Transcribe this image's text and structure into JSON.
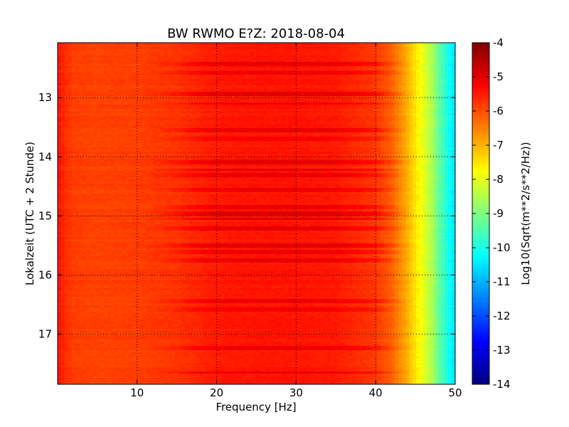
{
  "chart_data": {
    "type": "heatmap",
    "title": "BW RWMO E?Z: 2018-08-04",
    "xlabel": "Frequency [Hz]",
    "ylabel": "Lokalzeit (UTC + 2 Stunde)",
    "xlim": [
      0,
      50
    ],
    "ylim": [
      12.07,
      17.85
    ],
    "y_inverted": true,
    "x_ticks": [
      "10",
      "20",
      "30",
      "40",
      "50"
    ],
    "y_ticks": [
      "13",
      "14",
      "15",
      "16",
      "17"
    ],
    "grid": true,
    "colormap": "jet",
    "colorbar": {
      "label": "Log10(Sqrt(m**2/s**2/Hz))",
      "range": [
        -14,
        -4
      ],
      "ticks": [
        "-4",
        "-5",
        "-6",
        "-7",
        "-8",
        "-9",
        "-10",
        "-11",
        "-12",
        "-13",
        "-14"
      ]
    },
    "spectrum_profile": {
      "frequency_hz": [
        0,
        1,
        2,
        5,
        10,
        15,
        20,
        25,
        30,
        35,
        40,
        42,
        44,
        45,
        46,
        47,
        48,
        49,
        50
      ],
      "log10_amplitude": [
        -5.4,
        -5.7,
        -5.85,
        -5.9,
        -5.85,
        -5.75,
        -5.5,
        -5.45,
        -5.45,
        -5.5,
        -5.8,
        -6.2,
        -7.0,
        -7.5,
        -8.0,
        -8.5,
        -9.3,
        -10.0,
        -10.6
      ]
    },
    "high_energy_bands_hours": [
      {
        "time": 12.42,
        "delta": 0.45
      },
      {
        "time": 12.57,
        "delta": 0.35
      },
      {
        "time": 12.95,
        "delta": 0.45
      },
      {
        "time": 13.1,
        "delta": 0.4
      },
      {
        "time": 13.55,
        "delta": 0.45
      },
      {
        "time": 13.7,
        "delta": 0.3
      },
      {
        "time": 14.1,
        "delta": 0.4
      },
      {
        "time": 14.22,
        "delta": 0.5
      },
      {
        "time": 14.3,
        "delta": 0.35
      },
      {
        "time": 14.55,
        "delta": 0.4
      },
      {
        "time": 14.85,
        "delta": 0.45
      },
      {
        "time": 14.95,
        "delta": 0.55
      },
      {
        "time": 15.05,
        "delta": 0.45
      },
      {
        "time": 15.2,
        "delta": 0.4
      },
      {
        "time": 15.5,
        "delta": 0.45
      },
      {
        "time": 15.6,
        "delta": 0.35
      },
      {
        "time": 15.75,
        "delta": 0.4
      },
      {
        "time": 16.45,
        "delta": 0.4
      },
      {
        "time": 16.6,
        "delta": 0.35
      },
      {
        "time": 17.25,
        "delta": 0.35
      },
      {
        "time": 17.65,
        "delta": 0.4
      }
    ],
    "colors": {
      "jet": [
        "#00007f",
        "#0000ff",
        "#007fff",
        "#00ffff",
        "#7fff7f",
        "#ffff00",
        "#ff7f00",
        "#ff0000",
        "#7f0000"
      ]
    }
  }
}
